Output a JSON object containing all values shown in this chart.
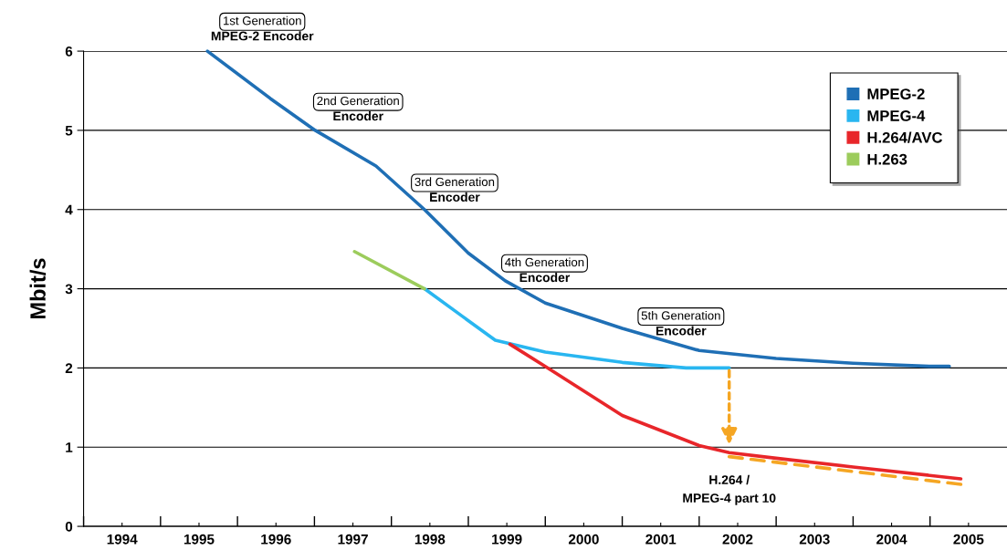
{
  "chart_data": {
    "type": "line",
    "ylabel": "Mbit/s",
    "xlim": [
      1993.5,
      2005.5
    ],
    "xticks": [
      {
        "value": 1993.5,
        "label": null
      },
      {
        "value": 1994,
        "label": "1994"
      },
      {
        "value": 1994.5,
        "label": null
      },
      {
        "value": 1995,
        "label": "1995"
      },
      {
        "value": 1995.5,
        "label": null
      },
      {
        "value": 1996,
        "label": "1996"
      },
      {
        "value": 1996.5,
        "label": null
      },
      {
        "value": 1997,
        "label": "1997"
      },
      {
        "value": 1997.5,
        "label": null
      },
      {
        "value": 1998,
        "label": "1998"
      },
      {
        "value": 1998.5,
        "label": null
      },
      {
        "value": 1999,
        "label": "1999"
      },
      {
        "value": 1999.5,
        "label": null
      },
      {
        "value": 2000,
        "label": "2000"
      },
      {
        "value": 2000.5,
        "label": null
      },
      {
        "value": 2001,
        "label": "2001"
      },
      {
        "value": 2001.5,
        "label": null
      },
      {
        "value": 2002,
        "label": "2002"
      },
      {
        "value": 2002.5,
        "label": null
      },
      {
        "value": 2003,
        "label": "2003"
      },
      {
        "value": 2003.5,
        "label": null
      },
      {
        "value": 2004,
        "label": "2004"
      },
      {
        "value": 2004.5,
        "label": null
      },
      {
        "value": 2005,
        "label": "2005"
      }
    ],
    "ylim": [
      0,
      6
    ],
    "yticks": [
      0,
      1,
      2,
      3,
      4,
      5,
      6
    ],
    "grid": "y",
    "legend": "top right",
    "line_style": "solid",
    "marker": "none",
    "series": [
      {
        "name": "MPEG-2",
        "color": "#1f6fb5",
        "x": [
          1995.11,
          1995.93,
          1996.51,
          1997.3,
          1997.93,
          1998.5,
          1998.98,
          1999.5,
          2000.5,
          2001.5,
          2002.5,
          2003.5,
          2004.49,
          2004.75
        ],
        "values": [
          6.0,
          5.4,
          5.0,
          4.55,
          4.0,
          3.45,
          3.1,
          2.82,
          2.5,
          2.22,
          2.12,
          2.06,
          2.02,
          2.02
        ]
      },
      {
        "name": "MPEG-4",
        "color": "#29b6f0",
        "x": [
          1997.93,
          1998.85,
          1999.5,
          2000.5,
          2001.33,
          2001.89
        ],
        "values": [
          3.0,
          2.35,
          2.2,
          2.07,
          2.0,
          2.0
        ]
      },
      {
        "name": "H.264/AVC",
        "color": "#e8262a",
        "x": [
          1999.04,
          1999.5,
          2000.5,
          2001.5,
          2001.89,
          2002.5,
          2003.5,
          2004.9
        ],
        "values": [
          2.3,
          2.02,
          1.4,
          1.02,
          0.93,
          0.86,
          0.75,
          0.6
        ]
      },
      {
        "name": "H.263",
        "color": "#9ccc5c",
        "x": [
          1997.02,
          1997.93
        ],
        "values": [
          3.47,
          3.0
        ]
      },
      {
        "color": "#f5a623",
        "line_style": "dashed",
        "x": [
          2001.89,
          2004.9
        ],
        "values": [
          0.88,
          0.53
        ]
      }
    ],
    "annotations": [
      {
        "text": "1st Generation\nMPEG-2 Encoder",
        "x": 1995.11,
        "y": 6.0
      },
      {
        "text": "2nd Generation\nEncoder",
        "x": 1996.51,
        "y": 5.0
      },
      {
        "text": "3rd Generation\nEncoder",
        "x": 1997.93,
        "y": 4.0
      },
      {
        "text": "4th Generation\nEncoder",
        "x": 1998.98,
        "y": 3.1
      },
      {
        "text": "5th Generation\nEncoder",
        "x": 2001.5,
        "y": 2.22
      },
      {
        "text": "H.264 /\nMPEG-4 part 10",
        "x": 2001.89,
        "y": 1.0
      }
    ]
  }
}
